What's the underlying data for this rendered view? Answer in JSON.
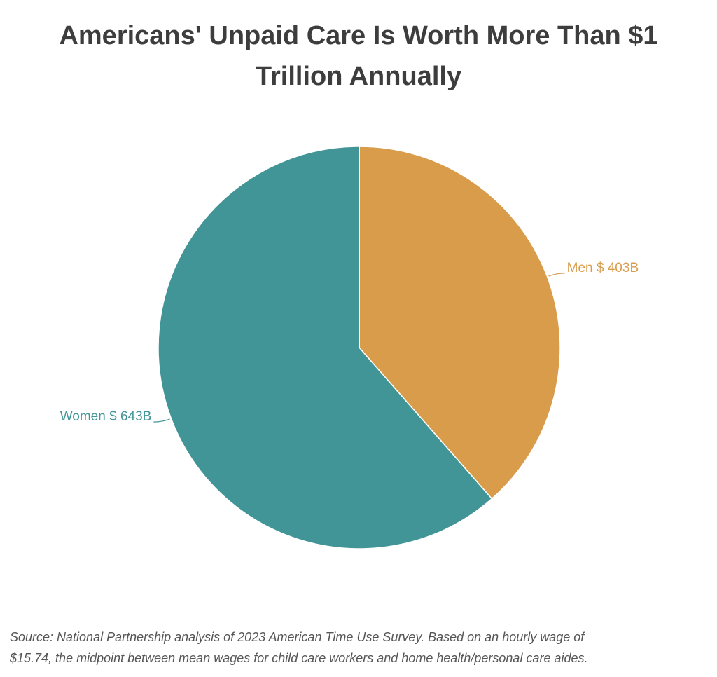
{
  "title": {
    "line1": "Americans' Unpaid Care Is Worth More Than $1",
    "line2": "Trillion Annually"
  },
  "chart_data": {
    "type": "pie",
    "slices": [
      {
        "label": "Men $ 403B",
        "value": 403,
        "color": "#d89c4b"
      },
      {
        "label": "Women $ 643B",
        "value": 643,
        "color": "#429596"
      }
    ],
    "start": "12 o'clock",
    "direction": "clockwise"
  },
  "source": {
    "line1": "Source: National Partnership analysis of 2023 American Time Use Survey. Based on an hourly wage of",
    "line2": "$15.74, the midpoint between mean wages for child care workers and home health/personal care aides."
  }
}
